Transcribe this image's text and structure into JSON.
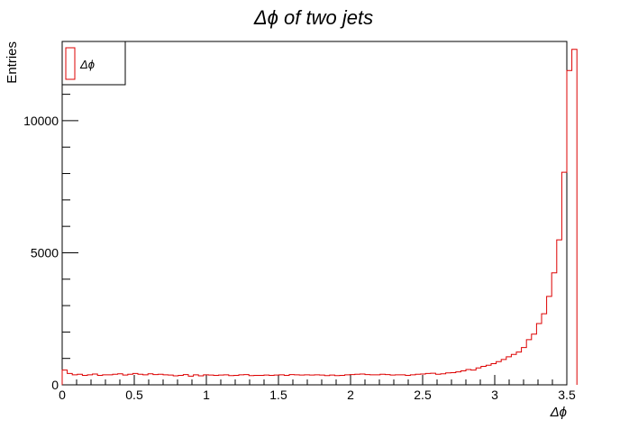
{
  "chart_data": {
    "type": "bar",
    "histogram": true,
    "title": "Δϕ   of   two   jets",
    "xlabel": "Δϕ",
    "ylabel": "Entries",
    "xlim": [
      0,
      3.5
    ],
    "ylim": [
      0,
      13000
    ],
    "x_ticks": [
      0,
      0.5,
      1,
      1.5,
      2,
      2.5,
      3,
      3.5
    ],
    "x_tick_labels": [
      "0",
      "0.5",
      "1",
      "1.5",
      "2",
      "2.5",
      "3",
      "3.5"
    ],
    "y_ticks": [
      0,
      5000,
      10000
    ],
    "y_tick_labels": [
      "0",
      "5000",
      "10000"
    ],
    "bin_width": 0.035,
    "grid": false,
    "legend": {
      "position": "top-left",
      "entries": [
        {
          "label": "Δϕ",
          "color": "#dd0000"
        }
      ]
    },
    "series": [
      {
        "name": "Δϕ",
        "color": "#dd0000",
        "bin_edges_start": 0,
        "values": [
          560,
          430,
          380,
          400,
          360,
          380,
          410,
          360,
          380,
          380,
          400,
          420,
          370,
          400,
          430,
          400,
          380,
          420,
          390,
          400,
          380,
          370,
          340,
          360,
          390,
          330,
          380,
          340,
          380,
          370,
          360,
          370,
          380,
          350,
          360,
          380,
          390,
          350,
          360,
          360,
          370,
          360,
          370,
          380,
          360,
          390,
          380,
          370,
          380,
          370,
          380,
          370,
          350,
          370,
          350,
          360,
          380,
          390,
          400,
          410,
          390,
          380,
          380,
          400,
          390,
          370,
          380,
          380,
          360,
          380,
          400,
          410,
          430,
          440,
          400,
          420,
          450,
          460,
          490,
          530,
          580,
          560,
          640,
          700,
          740,
          800,
          880,
          960,
          1060,
          1150,
          1240,
          1410,
          1710,
          1920,
          2320,
          2690,
          3350,
          4240,
          5490,
          8050,
          11900,
          12700
        ]
      }
    ]
  }
}
